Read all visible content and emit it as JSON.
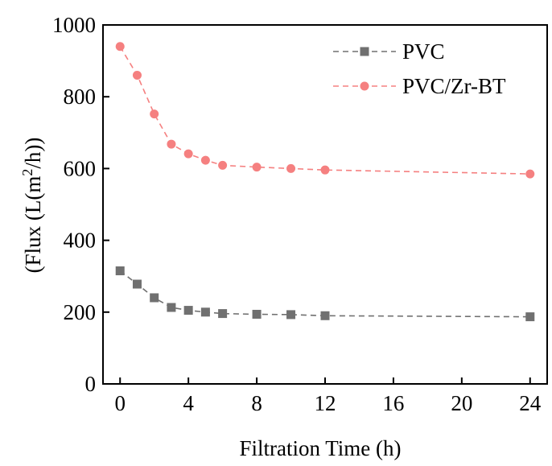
{
  "chart_data": {
    "type": "line",
    "title": "",
    "xlabel": "Filtration Time (h)",
    "ylabel_parts": [
      "(Flux (L(m",
      "2",
      "/h))"
    ],
    "xlim": [
      -1,
      25
    ],
    "ylim": [
      0,
      1000
    ],
    "xticks": [
      0,
      4,
      8,
      12,
      16,
      20,
      24
    ],
    "yticks": [
      0,
      200,
      400,
      600,
      800,
      1000
    ],
    "grid": false,
    "legend_position": "top-right",
    "series": [
      {
        "name": "PVC",
        "color": "#707070",
        "marker": "square",
        "line_style": "dashed",
        "x": [
          0,
          1,
          2,
          3,
          4,
          5,
          6,
          8,
          10,
          12,
          24
        ],
        "y": [
          315,
          278,
          240,
          213,
          205,
          200,
          196,
          194,
          193,
          190,
          187
        ]
      },
      {
        "name": "PVC/Zr-BT",
        "color": "#f58080",
        "marker": "circle",
        "line_style": "dashed",
        "x": [
          0,
          1,
          2,
          3,
          4,
          5,
          6,
          8,
          10,
          12,
          24
        ],
        "y": [
          940,
          860,
          752,
          668,
          641,
          623,
          609,
          604,
          600,
          596,
          585
        ]
      }
    ]
  }
}
